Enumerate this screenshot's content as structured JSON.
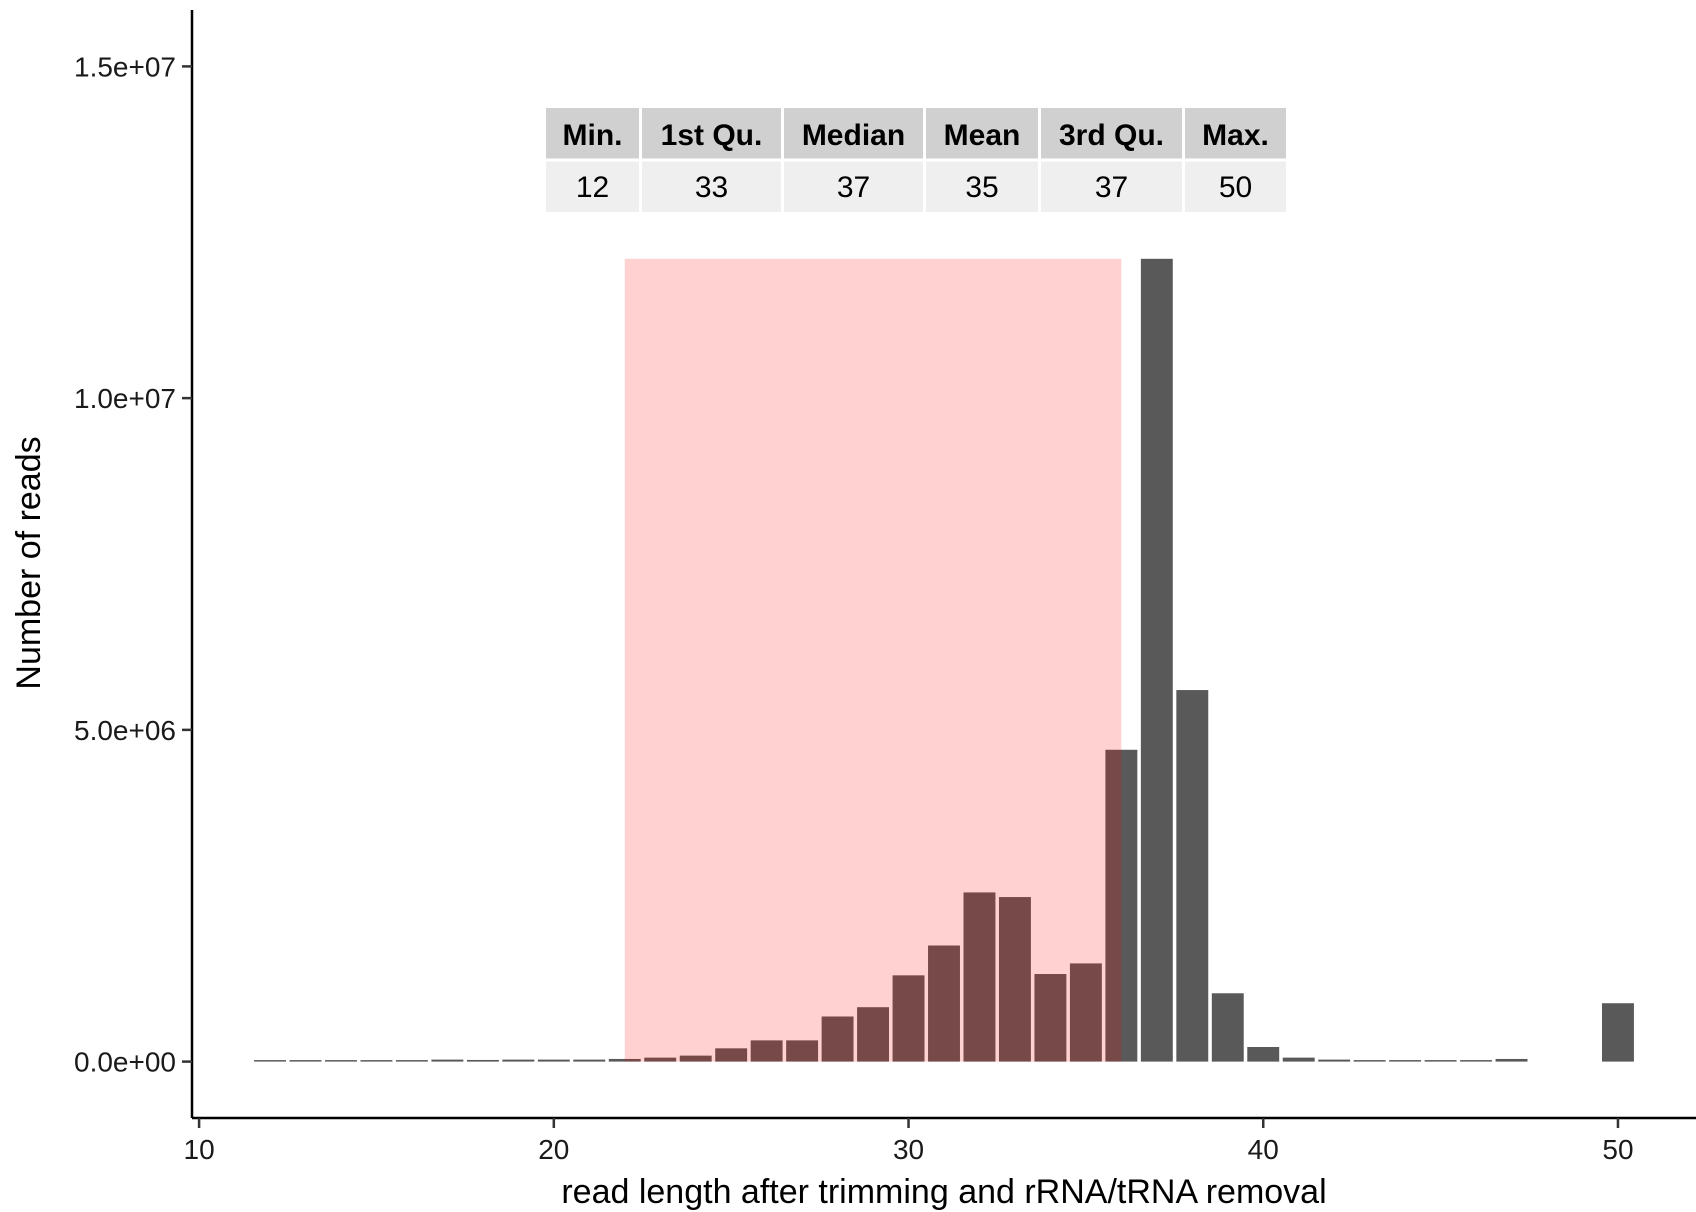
{
  "chart_data": {
    "type": "bar",
    "title": "",
    "xlabel": "read length after trimming and rRNA/tRNA removal",
    "ylabel": "Number of reads",
    "xlim": [
      9.8,
      52.2
    ],
    "ylim": [
      -850000,
      15850000
    ],
    "x_ticks": [
      10,
      20,
      30,
      40,
      50
    ],
    "x_tick_labels": [
      "10",
      "20",
      "30",
      "40",
      "50"
    ],
    "y_ticks": [
      0,
      5000000,
      10000000,
      15000000
    ],
    "y_tick_labels": [
      "0.0e+00",
      "5.0e+06",
      "1.0e+07",
      "1.5e+07"
    ],
    "grid": false,
    "bar_color": "#595959",
    "x": [
      12,
      13,
      14,
      15,
      16,
      17,
      18,
      19,
      20,
      21,
      22,
      23,
      24,
      25,
      26,
      27,
      28,
      29,
      30,
      31,
      32,
      33,
      34,
      35,
      36,
      37,
      38,
      39,
      40,
      41,
      42,
      43,
      44,
      45,
      46,
      47,
      50
    ],
    "values": [
      15000,
      15000,
      15000,
      15000,
      20000,
      30000,
      25000,
      30000,
      30000,
      30000,
      40000,
      60000,
      90000,
      200000,
      320000,
      320000,
      680000,
      820000,
      1300000,
      1750000,
      2550000,
      2480000,
      1320000,
      1480000,
      4700000,
      12100000,
      5600000,
      1030000,
      220000,
      60000,
      30000,
      20000,
      15000,
      15000,
      15000,
      40000,
      880000
    ],
    "highlight_region": {
      "x_range": [
        22,
        36
      ],
      "y_range": [
        0,
        12100000
      ],
      "color": "#fcd0d0"
    },
    "summary_table": {
      "headers": [
        "Min.",
        "1st Qu.",
        "Median",
        "Mean",
        "3rd Qu.",
        "Max."
      ],
      "values": [
        "12",
        "33",
        "37",
        "35",
        "37",
        "50"
      ]
    }
  }
}
